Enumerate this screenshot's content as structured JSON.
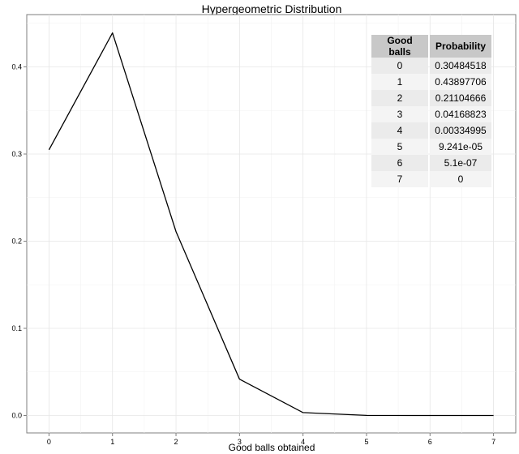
{
  "chart_data": {
    "type": "line",
    "title": "Hypergeometric Distribution",
    "xlabel": "Good balls obtained",
    "ylabel": "",
    "x": [
      0,
      1,
      2,
      3,
      4,
      5,
      6,
      7
    ],
    "values": [
      0.30484518,
      0.43897706,
      0.21104666,
      0.04168823,
      0.00334995,
      9.241e-05,
      5.1e-07,
      0
    ],
    "xlim": [
      -0.35,
      7.35
    ],
    "ylim": [
      -0.02,
      0.46
    ],
    "xticks": [
      "0",
      "1",
      "2",
      "3",
      "4",
      "5",
      "6",
      "7"
    ],
    "yticks": [
      "0.0",
      "0.1",
      "0.2",
      "0.3",
      "0.4"
    ],
    "grid": true,
    "line_color": "#000000"
  },
  "table": {
    "headers": [
      "Good balls",
      "Probability"
    ],
    "rows": [
      [
        "0",
        "0.30484518"
      ],
      [
        "1",
        "0.43897706"
      ],
      [
        "2",
        "0.21104666"
      ],
      [
        "3",
        "0.04168823"
      ],
      [
        "4",
        "0.00334995"
      ],
      [
        "5",
        "9.241e-05"
      ],
      [
        "6",
        "5.1e-07"
      ],
      [
        "7",
        "0"
      ]
    ]
  }
}
